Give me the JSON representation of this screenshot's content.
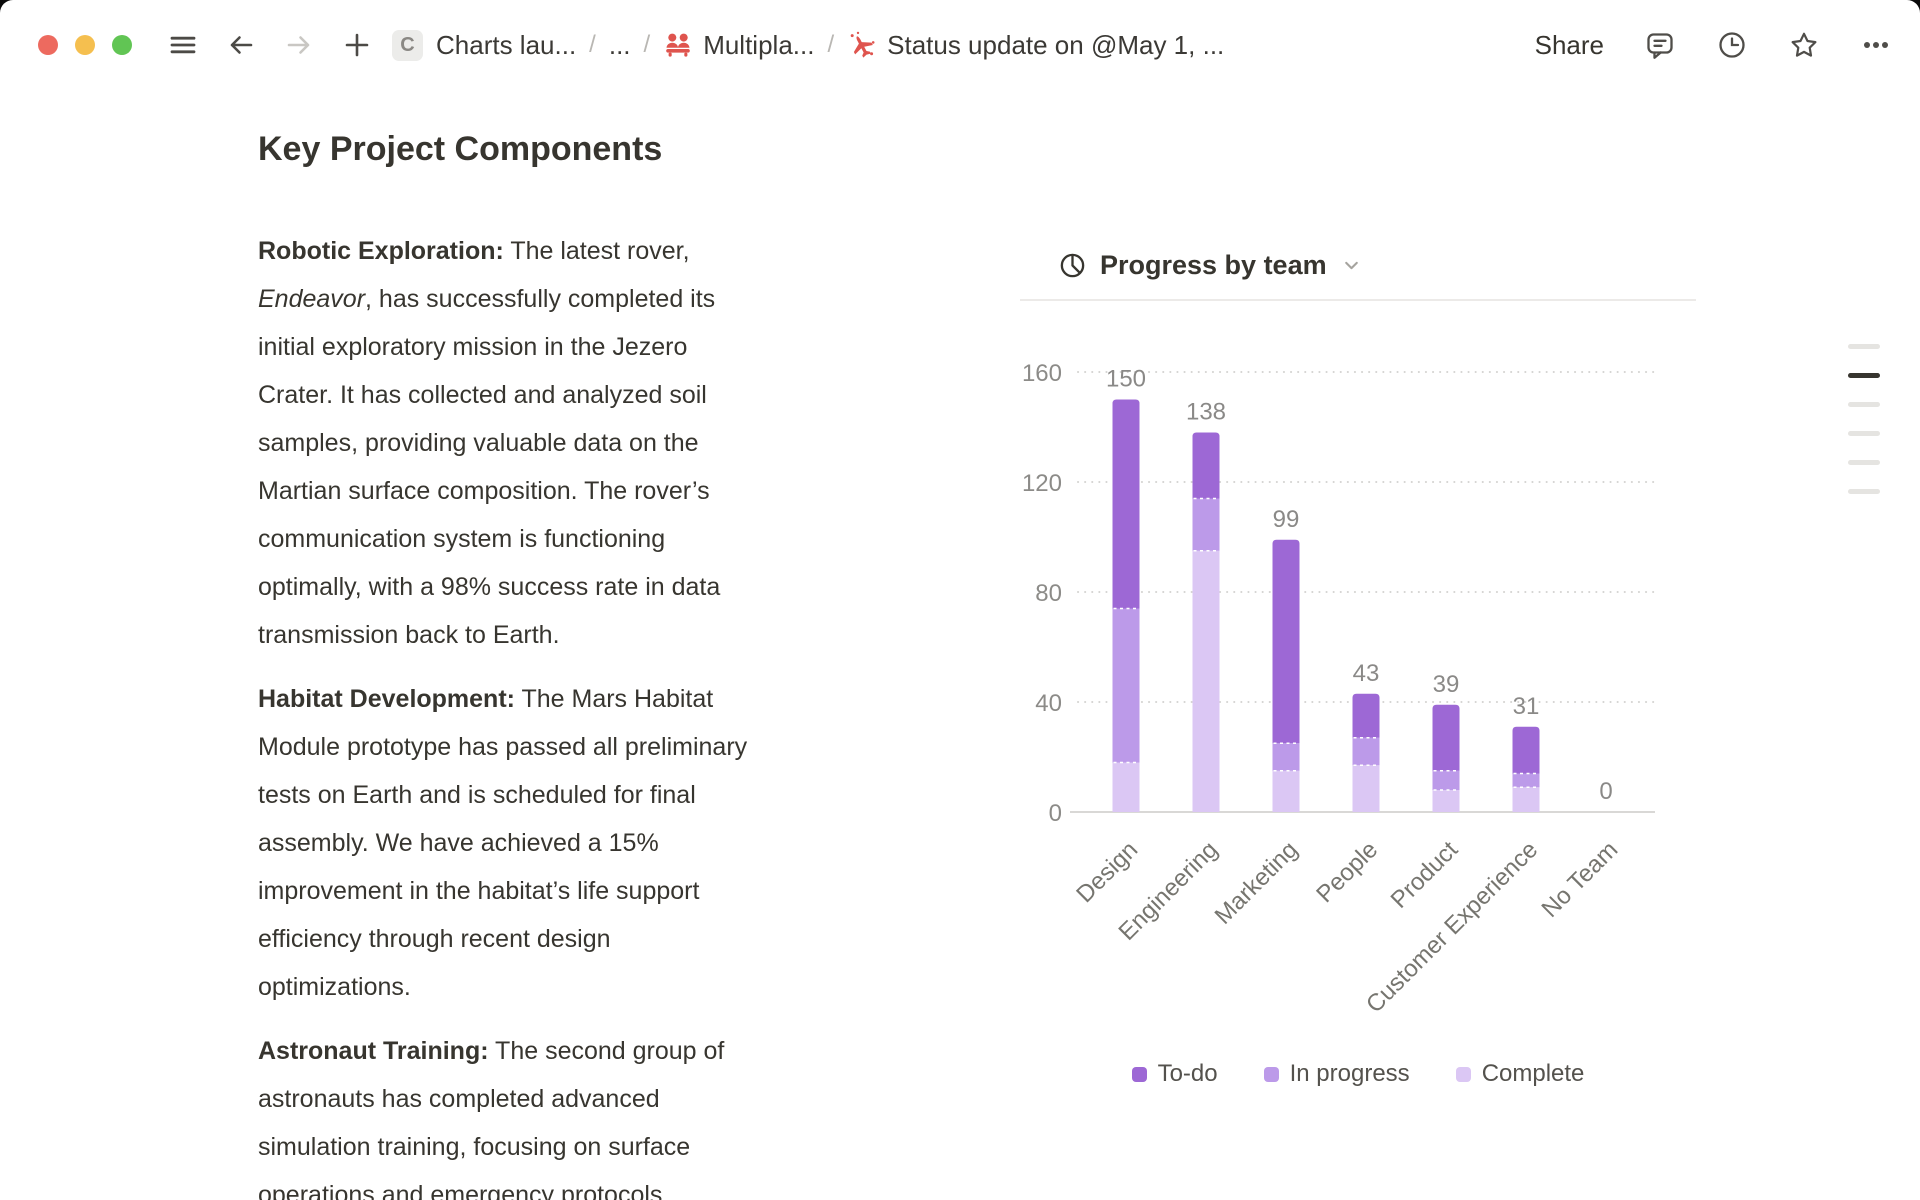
{
  "window": {
    "traffic_lights": [
      {
        "name": "close",
        "color": "#ED6A5F"
      },
      {
        "name": "minimize",
        "color": "#F5BF4F"
      },
      {
        "name": "zoom",
        "color": "#61C554"
      }
    ]
  },
  "titlebar": {
    "share_label": "Share",
    "breadcrumb": {
      "workspace_badge": "C",
      "separator": "/",
      "icon_color": "#DF544E",
      "items": [
        {
          "label": "Charts lau...",
          "icon": null
        },
        {
          "label": "...",
          "icon": null
        },
        {
          "label": "Multipla...",
          "icon": "people"
        },
        {
          "label": "Status update on @May 1, ...",
          "icon": "plane"
        }
      ]
    }
  },
  "document": {
    "title": "Key Project Components",
    "paragraphs": [
      {
        "lines": [
          [
            {
              "text": "Robotic Exploration:",
              "bold": true
            },
            {
              "text": " The latest rover,"
            }
          ],
          [
            {
              "text": "Endeavor",
              "italic": true
            },
            {
              "text": ", has successfully completed its"
            }
          ],
          [
            {
              "text": "initial exploratory mission in the Jezero"
            }
          ],
          [
            {
              "text": "Crater. It has collected and analyzed soil"
            }
          ],
          [
            {
              "text": "samples, providing valuable data on the"
            }
          ],
          [
            {
              "text": "Martian surface composition. The rover’s"
            }
          ],
          [
            {
              "text": "communication system is functioning"
            }
          ],
          [
            {
              "text": "optimally, with a 98% success rate in data"
            }
          ],
          [
            {
              "text": "transmission back to Earth."
            }
          ]
        ]
      },
      {
        "lines": [
          [
            {
              "text": "Habitat Development:",
              "bold": true
            },
            {
              "text": " The Mars Habitat"
            }
          ],
          [
            {
              "text": "Module prototype has passed all preliminary"
            }
          ],
          [
            {
              "text": "tests on Earth and is scheduled for final"
            }
          ],
          [
            {
              "text": "assembly. We have achieved a 15%"
            }
          ],
          [
            {
              "text": "improvement in the habitat’s life support"
            }
          ],
          [
            {
              "text": "efficiency through recent design"
            }
          ],
          [
            {
              "text": "optimizations."
            }
          ]
        ]
      },
      {
        "lines": [
          [
            {
              "text": "Astronaut Training:",
              "bold": true
            },
            {
              "text": " The second group of"
            }
          ],
          [
            {
              "text": "astronauts has completed advanced"
            }
          ],
          [
            {
              "text": "simulation training, focusing on surface"
            }
          ],
          [
            {
              "text": "operations and emergency protocols"
            }
          ]
        ]
      }
    ]
  },
  "chart_data": {
    "type": "bar",
    "stacked": true,
    "title": "Progress by team",
    "categories": [
      "Design",
      "Engineering",
      "Marketing",
      "People",
      "Product",
      "Customer Experience",
      "No Team"
    ],
    "series": [
      {
        "name": "To-do",
        "color": "#9D68D5",
        "values": [
          76,
          24,
          74,
          16,
          24,
          17,
          0
        ]
      },
      {
        "name": "In progress",
        "color": "#BC9AE9",
        "values": [
          56,
          19,
          10,
          10,
          7,
          5,
          0
        ]
      },
      {
        "name": "Complete",
        "color": "#DBC7F4",
        "values": [
          18,
          95,
          15,
          17,
          8,
          9,
          0
        ]
      }
    ],
    "stack_bottom_to_top": [
      "Complete",
      "In progress",
      "To-do"
    ],
    "totals": [
      150,
      138,
      99,
      43,
      39,
      31,
      0
    ],
    "y_ticks": [
      0,
      40,
      80,
      120,
      160
    ],
    "ylim": [
      0,
      160
    ],
    "grid": "dotted-horizontal",
    "legend_position": "bottom"
  },
  "page_handles": {
    "items": [
      "inactive",
      "active",
      "inactive",
      "inactive",
      "inactive",
      "inactive"
    ]
  }
}
